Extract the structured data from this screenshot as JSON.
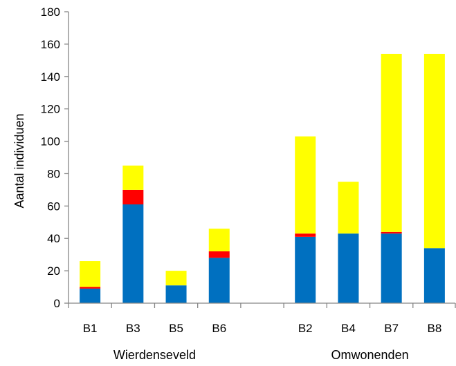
{
  "chart_data": {
    "type": "bar",
    "stacked": true,
    "ylabel": "Aantal individuen",
    "ylim": [
      0,
      180
    ],
    "yticks": [
      0,
      20,
      40,
      60,
      80,
      100,
      120,
      140,
      160,
      180
    ],
    "grid": false,
    "legend": "none",
    "categories": [
      "B1",
      "B3",
      "B5",
      "B6",
      "",
      "B2",
      "B4",
      "B7",
      "B8"
    ],
    "groups": [
      {
        "label": "Wierdenseveld",
        "categories": [
          "B1",
          "B3",
          "B5",
          "B6"
        ]
      },
      {
        "label": "Omwonenden",
        "categories": [
          "B2",
          "B4",
          "B7",
          "B8"
        ]
      }
    ],
    "series": [
      {
        "color": "#0070C0",
        "values": [
          9,
          61,
          11,
          28,
          null,
          41,
          43,
          43,
          34
        ]
      },
      {
        "color": "#FF0000",
        "values": [
          1,
          9,
          0,
          4,
          null,
          2,
          0,
          1,
          0
        ]
      },
      {
        "color": "#FFFF00",
        "values": [
          16,
          15,
          9,
          14,
          null,
          60,
          32,
          110,
          120
        ]
      }
    ]
  }
}
